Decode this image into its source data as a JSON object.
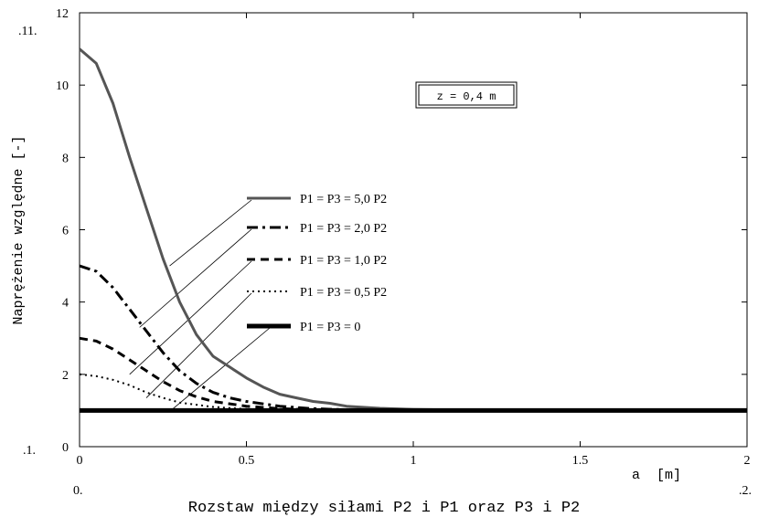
{
  "chart_data": {
    "type": "line",
    "ylabel": "Naprężenie względne [-]",
    "xlabel": "Rozstaw między siłami P2 i P1 oraz P3 i P2",
    "x_axis_unit_label": "a  [m]",
    "xlim": [
      0,
      2
    ],
    "ylim": [
      0,
      12
    ],
    "x_ticks": [
      "0",
      "0.5",
      "1",
      "1.5",
      "2"
    ],
    "y_ticks": [
      "0",
      "2",
      "4",
      "6",
      "8",
      "10",
      "12"
    ],
    "corner_labels": {
      "y_max": ".11.",
      "y_min": ".1.",
      "x_min": "0.",
      "x_max": ".2."
    },
    "annotation": "z = 0,4 m",
    "colors": {
      "series_5": "#555555",
      "others": "#000000"
    },
    "series": [
      {
        "name": "P1 = P3 = 5,0 P2",
        "style": "solid",
        "x": [
          0,
          0.05,
          0.1,
          0.15,
          0.2,
          0.25,
          0.3,
          0.35,
          0.4,
          0.45,
          0.5,
          0.55,
          0.6,
          0.65,
          0.7,
          0.75,
          0.8,
          0.9,
          1.0,
          1.2,
          1.5,
          2.0
        ],
        "values": [
          11.0,
          10.6,
          9.5,
          8.0,
          6.6,
          5.2,
          4.0,
          3.1,
          2.5,
          2.2,
          1.9,
          1.65,
          1.45,
          1.35,
          1.25,
          1.2,
          1.12,
          1.06,
          1.03,
          1.01,
          1.0,
          1.0
        ]
      },
      {
        "name": "P1 = P3 = 2,0 P2",
        "style": "dashdot",
        "x": [
          0,
          0.05,
          0.1,
          0.15,
          0.2,
          0.25,
          0.3,
          0.35,
          0.4,
          0.45,
          0.5,
          0.6,
          0.7,
          0.8,
          1.0,
          1.5,
          2.0
        ],
        "values": [
          5.0,
          4.85,
          4.4,
          3.8,
          3.2,
          2.6,
          2.1,
          1.75,
          1.5,
          1.35,
          1.25,
          1.12,
          1.05,
          1.02,
          1.0,
          1.0,
          1.0
        ]
      },
      {
        "name": "P1 = P3 = 1,0 P2",
        "style": "dashed",
        "x": [
          0,
          0.05,
          0.1,
          0.15,
          0.2,
          0.25,
          0.3,
          0.35,
          0.4,
          0.5,
          0.6,
          0.7,
          0.8,
          1.0,
          1.5,
          2.0
        ],
        "values": [
          3.0,
          2.92,
          2.7,
          2.4,
          2.1,
          1.8,
          1.55,
          1.38,
          1.25,
          1.12,
          1.05,
          1.02,
          1.0,
          1.0,
          1.0,
          1.0
        ]
      },
      {
        "name": "P1 = P3 = 0,5 P2",
        "style": "dotted",
        "x": [
          0,
          0.05,
          0.1,
          0.15,
          0.2,
          0.25,
          0.3,
          0.4,
          0.5,
          0.6,
          0.8,
          1.0,
          1.5,
          2.0
        ],
        "values": [
          2.0,
          1.95,
          1.85,
          1.7,
          1.5,
          1.35,
          1.22,
          1.1,
          1.04,
          1.02,
          1.0,
          1.0,
          1.0,
          1.0
        ]
      },
      {
        "name": "P1 = P3 = 0",
        "style": "thick",
        "x": [
          0,
          2.0
        ],
        "values": [
          1.0,
          1.0
        ]
      }
    ]
  }
}
